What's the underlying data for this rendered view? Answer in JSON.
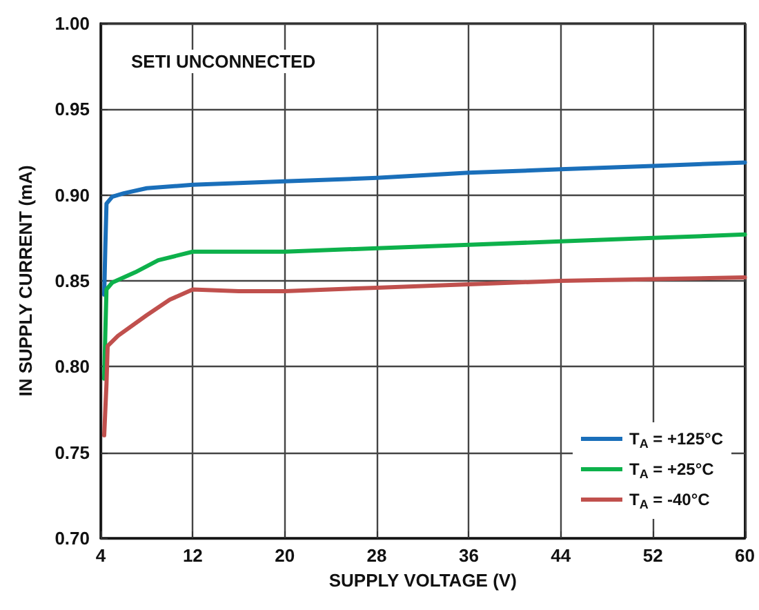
{
  "chart_data": {
    "type": "line",
    "xlabel": "SUPPLY VOLTAGE (V)",
    "ylabel": "IN SUPPLY CURRENT (mA)",
    "annotations": [
      "SETI UNCONNECTED"
    ],
    "xlim": [
      4,
      60
    ],
    "xticks": [
      4,
      12,
      20,
      28,
      36,
      44,
      52,
      60
    ],
    "ylim": [
      0.7,
      1.0
    ],
    "yticks": [
      {
        "value": 0.7,
        "label": "0.70"
      },
      {
        "value": 0.75,
        "label": "0.75"
      },
      {
        "value": 0.8,
        "label": "0.80"
      },
      {
        "value": 0.85,
        "label": "0.85"
      },
      {
        "value": 0.9,
        "label": "0.90"
      },
      {
        "value": 0.95,
        "label": "0.95"
      },
      {
        "value": 1.0,
        "label": "1.00"
      }
    ],
    "grid": true,
    "legend": "bottom right",
    "marker": "none",
    "line_style": "solid",
    "series": [
      {
        "name": "T$_{A}$ = +125°C",
        "color": "#1a6fba",
        "x": [
          4.3,
          4.4,
          4.5,
          5,
          6,
          8,
          12,
          20,
          28,
          36,
          44,
          52,
          60
        ],
        "values": [
          0.842,
          0.87,
          0.895,
          0.899,
          0.901,
          0.904,
          0.906,
          0.908,
          0.91,
          0.913,
          0.915,
          0.917,
          0.919
        ]
      },
      {
        "name": "T$_{A}$ = +25°C",
        "color": "#0db14b",
        "x": [
          4.3,
          4.4,
          4.5,
          5,
          7,
          9,
          12,
          20,
          28,
          36,
          44,
          52,
          60
        ],
        "values": [
          0.793,
          0.82,
          0.845,
          0.849,
          0.855,
          0.862,
          0.867,
          0.867,
          0.869,
          0.871,
          0.873,
          0.875,
          0.877
        ]
      },
      {
        "name": "T$_{A}$ = -40°C",
        "color": "#c0504d",
        "x": [
          4.3,
          4.5,
          4.6,
          5.5,
          8,
          10,
          12,
          16,
          20,
          28,
          36,
          44,
          52,
          60
        ],
        "values": [
          0.76,
          0.79,
          0.812,
          0.818,
          0.83,
          0.839,
          0.845,
          0.844,
          0.844,
          0.846,
          0.848,
          0.85,
          0.851,
          0.852
        ]
      }
    ]
  }
}
